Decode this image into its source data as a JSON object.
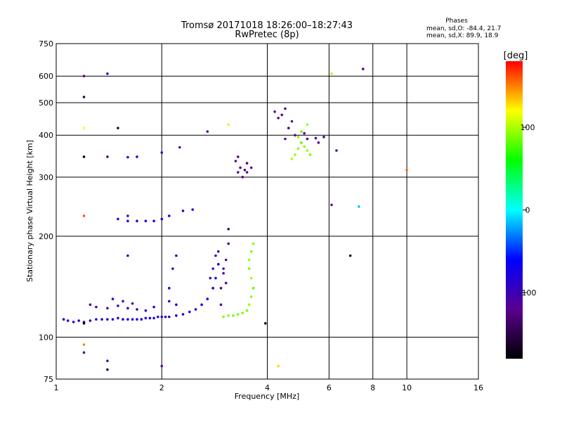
{
  "chart_data": {
    "type": "scatter",
    "title": "Tromsø 20171018 18:26:00–18:27:43",
    "subtitle": "RwPretec (8p)",
    "xlabel": "Frequency [MHz]",
    "ylabel": "Stationary phase Virtual Height [km]",
    "x_scale": "log",
    "y_scale": "log",
    "xlim": [
      1,
      16
    ],
    "ylim": [
      75,
      750
    ],
    "x_ticks": [
      1,
      2,
      4,
      6,
      8,
      10,
      16
    ],
    "y_ticks": [
      75,
      100,
      200,
      300,
      400,
      500,
      600,
      750
    ],
    "grid": true,
    "stats": {
      "heading": "Phases",
      "line_o": "mean, sd,O: -84.4, 21.7",
      "line_x": "mean, sd,X:  89.9, 18.9"
    },
    "colorbar": {
      "label": "[deg]",
      "range": [
        -180,
        180
      ],
      "ticks": [
        100,
        0,
        -100
      ],
      "colors": [
        "#ff0000",
        "#ffff00",
        "#00ff00",
        "#00ffff",
        "#0000ff",
        "#5a0090",
        "#000000"
      ]
    },
    "series": [
      {
        "points": [
          [
            1.05,
            113,
            -85
          ],
          [
            1.08,
            112,
            -80
          ],
          [
            1.12,
            111,
            -90
          ],
          [
            1.16,
            112,
            -85
          ],
          [
            1.2,
            111,
            -88
          ],
          [
            1.25,
            112,
            -82
          ],
          [
            1.3,
            113,
            -86
          ],
          [
            1.35,
            113,
            -84
          ],
          [
            1.4,
            113,
            -80
          ],
          [
            1.45,
            113,
            -83
          ],
          [
            1.5,
            114,
            -81
          ],
          [
            1.55,
            113,
            -84
          ],
          [
            1.6,
            113,
            -80
          ],
          [
            1.65,
            113,
            -82
          ],
          [
            1.7,
            113,
            -79
          ],
          [
            1.75,
            113,
            -81
          ],
          [
            1.8,
            114,
            -80
          ],
          [
            1.85,
            114,
            -78
          ],
          [
            1.9,
            114,
            -82
          ],
          [
            1.95,
            115,
            -80
          ],
          [
            2.0,
            115,
            -78
          ],
          [
            2.05,
            115,
            -81
          ],
          [
            2.1,
            115,
            -79
          ],
          [
            2.2,
            116,
            -80
          ],
          [
            2.3,
            117,
            -82
          ],
          [
            2.4,
            119,
            -80
          ],
          [
            2.5,
            121,
            -78
          ],
          [
            2.6,
            125,
            -80
          ],
          [
            2.7,
            130,
            -78
          ],
          [
            2.8,
            140,
            -76
          ],
          [
            2.85,
            150,
            -75
          ],
          [
            2.9,
            165,
            -72
          ]
        ]
      },
      {
        "points": [
          [
            1.25,
            125,
            -105
          ],
          [
            1.3,
            123,
            -100
          ],
          [
            1.4,
            122,
            -110
          ],
          [
            1.5,
            124,
            -90
          ],
          [
            1.6,
            122,
            -95
          ],
          [
            1.7,
            121,
            -100
          ],
          [
            1.8,
            120,
            -92
          ],
          [
            1.9,
            123,
            -88
          ],
          [
            1.45,
            130,
            -98
          ],
          [
            1.55,
            128,
            -95
          ],
          [
            1.65,
            126,
            -92
          ],
          [
            2.1,
            128,
            -90
          ],
          [
            2.2,
            125,
            -88
          ],
          [
            2.1,
            140,
            -88
          ],
          [
            2.15,
            160,
            -82
          ],
          [
            2.2,
            175,
            -80
          ],
          [
            1.6,
            175,
            -75
          ],
          [
            1.5,
            225,
            -82
          ],
          [
            1.6,
            222,
            -80
          ],
          [
            1.7,
            222,
            -78
          ],
          [
            1.8,
            222,
            -80
          ],
          [
            1.9,
            222,
            -76
          ],
          [
            2.0,
            225,
            -78
          ],
          [
            2.1,
            230,
            -80
          ],
          [
            2.3,
            238,
            -82
          ],
          [
            2.45,
            240,
            -85
          ],
          [
            1.7,
            345,
            -80
          ],
          [
            1.6,
            344,
            -82
          ],
          [
            2.0,
            355,
            -88
          ],
          [
            2.25,
            368,
            -95
          ]
        ]
      },
      {
        "points": [
          [
            2.95,
            125,
            -120
          ],
          [
            2.95,
            140,
            -115
          ],
          [
            3.0,
            155,
            -110
          ],
          [
            3.05,
            170,
            -118
          ],
          [
            3.1,
            190,
            -125
          ],
          [
            3.1,
            210,
            -130
          ],
          [
            3.05,
            145,
            -118
          ],
          [
            3.0,
            160,
            -112
          ],
          [
            2.9,
            180,
            -105
          ],
          [
            2.85,
            175,
            -100
          ],
          [
            2.8,
            160,
            -95
          ],
          [
            2.75,
            150,
            -92
          ],
          [
            2.8,
            140,
            -90
          ]
        ]
      },
      {
        "points": [
          [
            3.0,
            115,
            90
          ],
          [
            3.1,
            116,
            92
          ],
          [
            3.2,
            116,
            85
          ],
          [
            3.3,
            117,
            88
          ],
          [
            3.4,
            118,
            90
          ],
          [
            3.5,
            120,
            85
          ],
          [
            3.55,
            125,
            95
          ],
          [
            3.6,
            132,
            90
          ],
          [
            3.65,
            140,
            80
          ],
          [
            3.6,
            150,
            95
          ],
          [
            3.55,
            160,
            85
          ],
          [
            3.55,
            170,
            92
          ],
          [
            3.6,
            180,
            88
          ],
          [
            3.65,
            190,
            90
          ]
        ]
      },
      {
        "points": [
          [
            3.25,
            335,
            -120
          ],
          [
            3.35,
            320,
            -125
          ],
          [
            3.45,
            315,
            -118
          ],
          [
            3.5,
            330,
            -130
          ],
          [
            3.3,
            345,
            -115
          ],
          [
            3.4,
            300,
            -125
          ],
          [
            3.5,
            310,
            -120
          ],
          [
            3.6,
            320,
            -118
          ],
          [
            3.3,
            310,
            -122
          ]
        ]
      },
      {
        "points": [
          [
            4.5,
            390,
            -120
          ],
          [
            4.6,
            420,
            -130
          ],
          [
            4.4,
            460,
            -115
          ],
          [
            4.5,
            480,
            -125
          ],
          [
            4.7,
            440,
            -118
          ],
          [
            4.2,
            470,
            -110
          ],
          [
            4.3,
            450,
            -120
          ],
          [
            4.8,
            400,
            -122
          ],
          [
            5.0,
            380,
            -112
          ],
          [
            5.1,
            405,
            -118
          ],
          [
            5.2,
            390,
            -125
          ],
          [
            5.5,
            392,
            -110
          ],
          [
            5.6,
            380,
            -115
          ],
          [
            5.8,
            395,
            -108
          ],
          [
            6.3,
            360,
            -105
          ]
        ]
      },
      {
        "points": [
          [
            4.8,
            350,
            95
          ],
          [
            4.9,
            365,
            90
          ],
          [
            5.0,
            380,
            88
          ],
          [
            5.1,
            370,
            92
          ],
          [
            5.2,
            360,
            95
          ],
          [
            5.3,
            350,
            85
          ],
          [
            4.7,
            340,
            100
          ],
          [
            4.9,
            395,
            90
          ],
          [
            5.0,
            410,
            85
          ],
          [
            5.2,
            430,
            95
          ]
        ]
      },
      {
        "points": [
          [
            1.2,
            600,
            -120
          ],
          [
            1.4,
            610,
            -95
          ],
          [
            1.2,
            520,
            -150
          ],
          [
            1.2,
            420,
            120
          ],
          [
            1.5,
            420,
            -150
          ],
          [
            1.2,
            345,
            -170
          ],
          [
            1.4,
            345,
            -130
          ],
          [
            1.6,
            230,
            -110
          ],
          [
            1.2,
            230,
            160
          ],
          [
            1.2,
            110,
            -180
          ],
          [
            1.2,
            95,
            150
          ],
          [
            1.2,
            90,
            -120
          ],
          [
            1.4,
            85,
            -110
          ],
          [
            1.4,
            80,
            -150
          ],
          [
            2.0,
            82,
            -110
          ],
          [
            3.95,
            110,
            -160
          ],
          [
            4.3,
            82,
            130
          ],
          [
            6.1,
            610,
            100
          ],
          [
            7.5,
            630,
            -120
          ],
          [
            10.0,
            315,
            155
          ],
          [
            7.3,
            245,
            -15
          ],
          [
            6.1,
            248,
            -120
          ],
          [
            6.9,
            175,
            -160
          ],
          [
            2.7,
            410,
            -120
          ],
          [
            3.1,
            430,
            110
          ]
        ]
      }
    ]
  }
}
